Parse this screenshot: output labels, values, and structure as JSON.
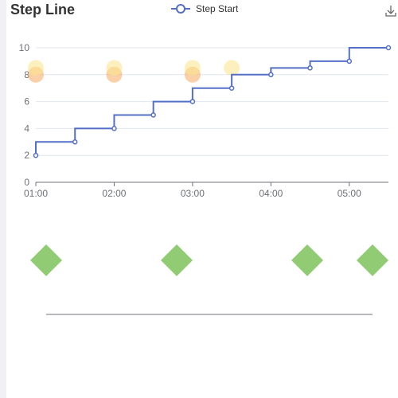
{
  "title": "Step Line",
  "legend": {
    "label": "Step Start",
    "color": "#5470c6"
  },
  "toolbar": {
    "download_icon": "download-icon"
  },
  "colors": {
    "line": "#5470c6",
    "bubble_yellow": "#fce38a",
    "bubble_orange": "#f5a962",
    "diamond": "#91cc75",
    "axis": "#6e7079",
    "grid": "#e0e6f1"
  },
  "chart_data": [
    {
      "type": "line",
      "step": "start",
      "title": "Step Line",
      "x_ticks": [
        "01:00",
        "02:00",
        "03:00",
        "04:00",
        "05:00"
      ],
      "y_ticks": [
        "0",
        "2",
        "4",
        "6",
        "8",
        "10"
      ],
      "xlim": [
        "01:00",
        "05:30"
      ],
      "ylim": [
        0,
        10
      ],
      "grid": "horizontal",
      "legend_position": "top-center",
      "series": [
        {
          "name": "Step Start",
          "x": [
            "01:00",
            "01:30",
            "02:00",
            "02:30",
            "03:00",
            "03:30",
            "04:00",
            "04:30",
            "05:00",
            "05:30"
          ],
          "y": [
            2,
            3,
            4,
            5,
            6,
            7,
            8,
            8.5,
            9,
            10
          ]
        }
      ]
    },
    {
      "type": "scatter",
      "x": [
        "01:00",
        "02:00",
        "03:00",
        "03:30"
      ],
      "y": [
        8.5,
        8.5,
        8.5,
        8.5
      ],
      "color": "#fce38a"
    },
    {
      "type": "scatter",
      "x": [
        "01:00",
        "02:00",
        "03:00"
      ],
      "y": [
        8,
        8,
        8
      ],
      "color": "#f5a962"
    },
    {
      "type": "scatter",
      "symbol": "diamond",
      "x": [
        "01:00",
        "02:40",
        "04:20",
        "05:10"
      ],
      "color": "#91cc75"
    }
  ]
}
